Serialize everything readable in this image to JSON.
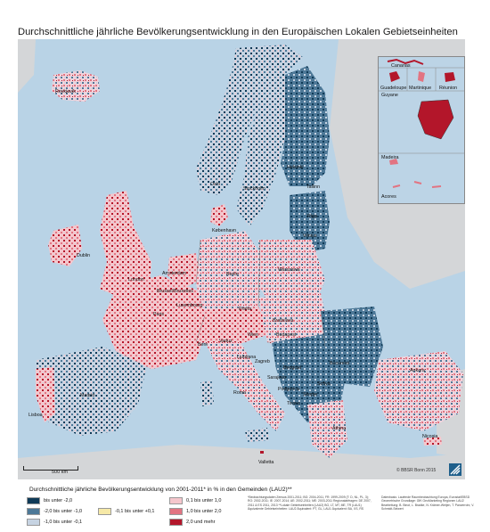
{
  "title": "Durchschnittliche jährliche Bevölkerungsentwicklung in den Europäischen Lokalen Gebietseinheiten",
  "insets": {
    "canarias": "Canarias",
    "guadeloupe": "Guadeloupe",
    "martinique": "Martinique",
    "reunion": "Réunion",
    "guyane": "Guyane",
    "madeira": "Madeira",
    "acores": "Acores"
  },
  "cities": [
    {
      "name": "Reykjavík"
    },
    {
      "name": "Oslo"
    },
    {
      "name": "Stockholm"
    },
    {
      "name": "Helsinki"
    },
    {
      "name": "Tallinn"
    },
    {
      "name": "Riga"
    },
    {
      "name": "Vilnius"
    },
    {
      "name": "København"
    },
    {
      "name": "Dublin"
    },
    {
      "name": "London"
    },
    {
      "name": "Amsterdam"
    },
    {
      "name": "Brussel/Bruxelles"
    },
    {
      "name": "Berlin"
    },
    {
      "name": "Warszawa"
    },
    {
      "name": "Luxembourg"
    },
    {
      "name": "Paris"
    },
    {
      "name": "Praha"
    },
    {
      "name": "Wien"
    },
    {
      "name": "Bratislava"
    },
    {
      "name": "Budapest"
    },
    {
      "name": "Bern"
    },
    {
      "name": "Vaduz"
    },
    {
      "name": "Ljubljana"
    },
    {
      "name": "Zagreb"
    },
    {
      "name": "Beograd"
    },
    {
      "name": "Bucuresti"
    },
    {
      "name": "Sarajevo"
    },
    {
      "name": "Podgorica"
    },
    {
      "name": "Skopje"
    },
    {
      "name": "Sofiya"
    },
    {
      "name": "Tirana"
    },
    {
      "name": "Roma"
    },
    {
      "name": "Madrid"
    },
    {
      "name": "Lisboa"
    },
    {
      "name": "Athina"
    },
    {
      "name": "Valletta"
    },
    {
      "name": "Nicosia"
    },
    {
      "name": "Ankara"
    }
  ],
  "scale_label": "500 km",
  "copyright": "© BBSR Bonn 2015",
  "legend": {
    "title": "Durchschnittliche jährliche Bevölkerungsentwicklung von 2001-2011* in % in den Gemeinden (LAU2)**",
    "items": [
      {
        "label": "bis unter -2,0",
        "color": "#0f3a57"
      },
      {
        "label": "-2,0 bis unter -1,0",
        "color": "#4d7897"
      },
      {
        "label": "-1,0 bis unter -0,1",
        "color": "#c6d3e2"
      },
      {
        "label": "-0,1 bis unter +0,1",
        "color": "#f6e9a7"
      },
      {
        "label": "0,1 bis unter 1,0",
        "color": "#f5c6cc"
      },
      {
        "label": "1,0 bis unter 2,0",
        "color": "#e27482"
      },
      {
        "label": "2,0 und mehr",
        "color": "#b3162a"
      }
    ]
  },
  "notes_left": "*Beobachtungsdaten Zensus 2001-2011; BG: 2004-2011, FR: 1999-2009 (T: D, NL, PL, 3); RO: 2002-2011; IE: 2007-2014; AE: 2002-2011; ME: 2003-2011 Regionalabfragen: DE 2007, 2011 & ES 2011, 2013 **Lokale Gebietseinheiten (LAU2) BG, LT, MT, ME, TR (LAU1) Äquivalente Gebietseinheiten: LAU2 Äquivalent: PT, GL, LAU1 Äquivalent: BA, XS, RS",
  "notes_right": "Datenbasis: Laufende Raumbeobachtung Europa, Eurostat/EBSD Geometrische Grundlage: GfK GeoMarketing Regionen LAU2 Bearbeitung: B. Binot, L. Bradke, N. Krämer-Wetjen, T. Panzerrohr, V. Schmidt-Seiwert"
}
